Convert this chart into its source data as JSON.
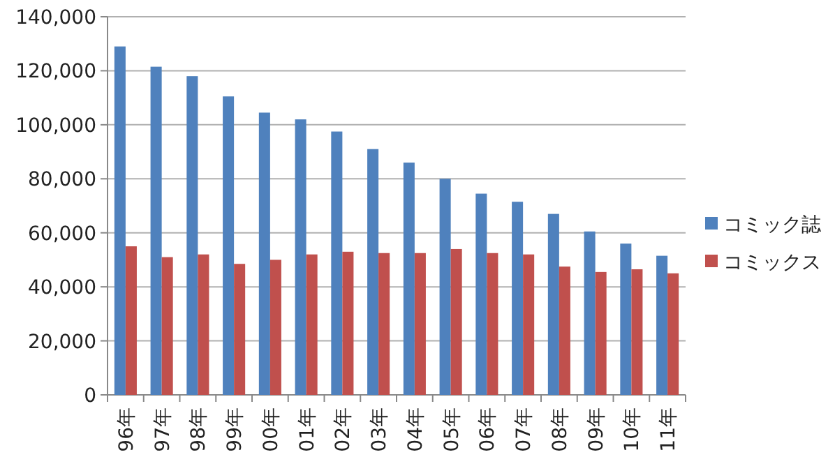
{
  "chart_data": {
    "type": "bar",
    "categories": [
      "96年",
      "97年",
      "98年",
      "99年",
      "00年",
      "01年",
      "02年",
      "03年",
      "04年",
      "05年",
      "06年",
      "07年",
      "08年",
      "09年",
      "10年",
      "11年"
    ],
    "series": [
      {
        "name": "コミック誌",
        "color": "#4f81bd",
        "values": [
          129000,
          121500,
          118000,
          110500,
          104500,
          102000,
          97500,
          91000,
          86000,
          80000,
          74500,
          71500,
          67000,
          60500,
          56000,
          51500
        ]
      },
      {
        "name": "コミックス",
        "color": "#c0504d",
        "values": [
          55000,
          51000,
          52000,
          48500,
          50000,
          52000,
          53000,
          52500,
          52500,
          54000,
          52500,
          52000,
          47500,
          45500,
          46500,
          45000
        ]
      }
    ],
    "ylim": [
      0,
      140000
    ],
    "yticks": [
      0,
      {
        "value": 20000,
        "label": "20,000"
      },
      {
        "value": 40000,
        "label": "40,000"
      },
      {
        "value": 60000,
        "label": "60,000"
      },
      {
        "value": 80000,
        "label": "80,000"
      },
      {
        "value": 100000,
        "label": "100,000"
      },
      {
        "value": 120000,
        "label": "120,000"
      },
      {
        "value": 140000,
        "label": "140,000"
      }
    ],
    "grid": "y",
    "legend": "right"
  }
}
